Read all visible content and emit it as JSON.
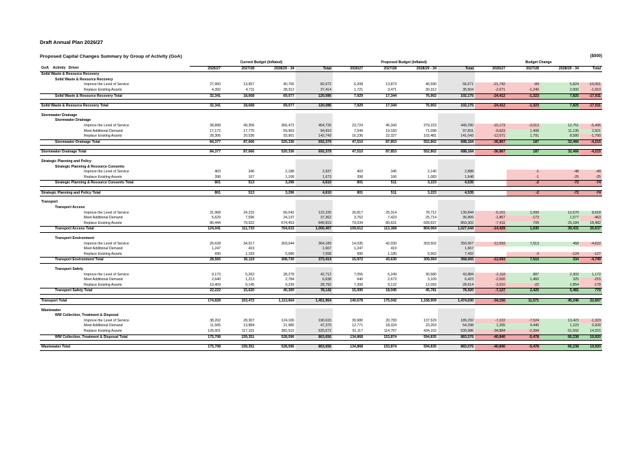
{
  "header": {
    "title": "Draft Annual Plan 2026/27",
    "subtitle": "Proposed Capital Changes Summary by Group of Activity (GoA)",
    "units": "($000)"
  },
  "groups": {
    "current": "Current Budget (Inflated)",
    "proposed": "Proposed Budget (Inflated)",
    "change": "Budget Change"
  },
  "columns": {
    "goa": "GoA",
    "activity": "Activity",
    "driver": "Driver",
    "y1": "2026/27",
    "y2": "2027/28",
    "y3": "2028/29 - 34",
    "total": "Total"
  },
  "rows": [
    {
      "type": "goa",
      "label": "Solid Waste & Resource Recovery"
    },
    {
      "type": "act",
      "label": "Solid Waste & Resource Recovery"
    },
    {
      "type": "drv",
      "label": "Improve the Level of Service",
      "v": [
        "27,950",
        "13,957",
        "40,765",
        "82,672",
        "6,208",
        "13,873",
        "46,590",
        "66,671",
        "-21,742",
        "-84",
        "5,824",
        "-16,001"
      ]
    },
    {
      "type": "drv",
      "label": "Replace Existing Assets",
      "v": [
        "4,392",
        "4,711",
        "28,312",
        "37,414",
        "1,721",
        "3,471",
        "30,312",
        "35,504",
        "-2,671",
        "-1,240",
        "2,000",
        "-1,910"
      ]
    },
    {
      "type": "tot",
      "label": "Solid Waste & Resource Recovery Total",
      "v": [
        "32,341",
        "18,668",
        "69,077",
        "120,086",
        "7,929",
        "17,344",
        "76,902",
        "102,175",
        "-24,412",
        "-1,323",
        "7,825",
        "-17,911"
      ]
    },
    {
      "type": "sp"
    },
    {
      "type": "gtot",
      "label": "Solid Waste & Resource Recovery Total",
      "v": [
        "32,341",
        "18,668",
        "69,077",
        "120,086",
        "7,929",
        "17,344",
        "76,902",
        "102,175",
        "-24,412",
        "-1,323",
        "7,825",
        "-17,911"
      ]
    },
    {
      "type": "sp"
    },
    {
      "type": "goa",
      "label": "Stormwater Drainage"
    },
    {
      "type": "act",
      "label": "Stormwater Drainage"
    },
    {
      "type": "drv",
      "label": "Improve the Level of Service",
      "v": [
        "38,898",
        "49,356",
        "366,472",
        "454,726",
        "23,724",
        "46,343",
        "379,223",
        "449,290",
        "-15,173",
        "-3,013",
        "12,751",
        "-5,436"
      ]
    },
    {
      "type": "drv",
      "label": "Meet Additional Demand",
      "v": [
        "17,172",
        "17,775",
        "59,963",
        "94,910",
        "7,549",
        "19,183",
        "71,098",
        "97,831",
        "-9,623",
        "1,408",
        "11,135",
        "2,921"
      ]
    },
    {
      "type": "drv",
      "label": "Replace Existing Assets",
      "v": [
        "28,306",
        "20,536",
        "93,901",
        "142,743",
        "16,236",
        "22,327",
        "102,481",
        "141,043",
        "-12,071",
        "1,791",
        "8,580",
        "-1,700"
      ]
    },
    {
      "type": "tot",
      "label": "Stormwater Drainage Total",
      "v": [
        "84,377",
        "87,666",
        "520,336",
        "692,379",
        "47,510",
        "87,853",
        "552,802",
        "688,164",
        "-36,867",
        "187",
        "32,466",
        "-4,215"
      ]
    },
    {
      "type": "sp"
    },
    {
      "type": "gtot",
      "label": "Stormwater Drainage Total",
      "v": [
        "84,377",
        "87,666",
        "520,336",
        "692,379",
        "47,510",
        "87,853",
        "552,802",
        "688,164",
        "-36,867",
        "187",
        "32,466",
        "-4,215"
      ]
    },
    {
      "type": "sp"
    },
    {
      "type": "goa",
      "label": "Strategic Planning and Policy"
    },
    {
      "type": "act",
      "label": "Strategic Planning & Resource Consents"
    },
    {
      "type": "drv",
      "label": "Improve the Level of Service",
      "v": [
        "403",
        "346",
        "2,188",
        "2,937",
        "403",
        "345",
        "2,140",
        "2,888",
        "",
        "-1",
        "-48",
        "-49"
      ]
    },
    {
      "type": "drv",
      "label": "Replace Existing Assets",
      "v": [
        "398",
        "167",
        "1,108",
        "1,673",
        "398",
        "166",
        "1,083",
        "1,648",
        "",
        "-1",
        "-25",
        "-25"
      ]
    },
    {
      "type": "tot",
      "label": "Strategic Planning & Resource Consents Total",
      "v": [
        "801",
        "513",
        "3,296",
        "4,610",
        "801",
        "511",
        "3,223",
        "4,535",
        "",
        "-2",
        "-72",
        "-74"
      ]
    },
    {
      "type": "sp"
    },
    {
      "type": "gtot",
      "label": "Strategic Planning and Policy Total",
      "v": [
        "801",
        "513",
        "3,296",
        "4,610",
        "801",
        "511",
        "3,223",
        "4,535",
        "",
        "-2",
        "-72",
        "-74"
      ]
    },
    {
      "type": "sp"
    },
    {
      "type": "goa",
      "label": "Transport"
    },
    {
      "type": "act",
      "label": "Transport Access"
    },
    {
      "type": "drv",
      "label": "Improve the Level of Service",
      "v": [
        "31,968",
        "24,215",
        "66,042",
        "122,226",
        "26,817",
        "25,314",
        "78,712",
        "130,844",
        "-5,151",
        "1,099",
        "12,670",
        "8,618"
      ]
    },
    {
      "type": "drv",
      "label": "Meet Additional Demand",
      "v": [
        "5,629",
        "7,596",
        "24,137",
        "37,362",
        "3,762",
        "7,423",
        "25,714",
        "36,899",
        "-1,867",
        "-173",
        "1,577",
        "-463"
      ]
    },
    {
      "type": "drv",
      "label": "Replace Existing Assets",
      "v": [
        "86,444",
        "79,922",
        "674,453",
        "840,819",
        "79,034",
        "80,631",
        "699,637",
        "859,302",
        "-7,411",
        "709",
        "25,184",
        "18,482"
      ]
    },
    {
      "type": "tot",
      "label": "Transport Access Total",
      "v": [
        "124,041",
        "111,733",
        "764,633",
        "1,000,407",
        "109,612",
        "113,368",
        "804,064",
        "1,027,044",
        "-14,429",
        "1,635",
        "39,431",
        "26,637"
      ]
    },
    {
      "type": "sp"
    },
    {
      "type": "act",
      "label": "Transport Environment"
    },
    {
      "type": "drv",
      "label": "Improve the Level of Service",
      "v": [
        "26,628",
        "34,517",
        "303,044",
        "364,189",
        "14,035",
        "42,030",
        "303,502",
        "359,567",
        "-12,593",
        "7,513",
        "458",
        "-4,622"
      ]
    },
    {
      "type": "drv",
      "label": "Meet Additional Demand",
      "v": [
        "1,247",
        "419",
        "",
        "1,667",
        "1,247",
        "419",
        "",
        "1,667",
        "",
        "",
        "",
        ""
      ]
    },
    {
      "type": "drv",
      "label": "Replace Existing Assets",
      "v": [
        "690",
        "1,183",
        "5,686",
        "7,558",
        "690",
        "1,180",
        "5,562",
        "7,432",
        "",
        "-3",
        "-124",
        "-127"
      ]
    },
    {
      "type": "tot",
      "label": "Transport Environment Total",
      "v": [
        "28,565",
        "36,119",
        "308,730",
        "373,414",
        "15,972",
        "43,630",
        "309,064",
        "368,665",
        "-12,593",
        "7,510",
        "334",
        "-4,749"
      ]
    },
    {
      "type": "sp"
    },
    {
      "type": "act",
      "label": "Transport Safety"
    },
    {
      "type": "drv",
      "label": "Improve the Level of Service",
      "v": [
        "9,173",
        "5,262",
        "28,278",
        "42,712",
        "7,055",
        "6,249",
        "30,580",
        "43,884",
        "-2,118",
        "987",
        "2,302",
        "1,172"
      ]
    },
    {
      "type": "drv",
      "label": "Meet Additional Demand",
      "v": [
        "2,640",
        "1,213",
        "2,784",
        "6,638",
        "640",
        "2,673",
        "3,109",
        "6,423",
        "-2,000",
        "1,460",
        "325",
        "-215"
      ]
    },
    {
      "type": "drv",
      "label": "Replace Existing Assets",
      "v": [
        "10,409",
        "9,145",
        "9,239",
        "28,792",
        "7,399",
        "9,122",
        "12,093",
        "28,614",
        "-3,010",
        "-22",
        "2,854",
        "-178"
      ]
    },
    {
      "type": "tot",
      "label": "Transport Safety Total",
      "v": [
        "22,222",
        "15,620",
        "40,300",
        "78,142",
        "15,095",
        "18,045",
        "45,781",
        "78,920",
        "-7,127",
        "2,425",
        "5,481",
        "779"
      ]
    },
    {
      "type": "sp"
    },
    {
      "type": "gtot",
      "label": "Transport Total",
      "v": [
        "174,828",
        "163,472",
        "1,113,664",
        "1,451,964",
        "140,678",
        "175,042",
        "1,158,909",
        "1,474,630",
        "-34,150",
        "11,571",
        "45,246",
        "22,667"
      ]
    },
    {
      "type": "sp"
    },
    {
      "type": "goa",
      "label": "Wastewater"
    },
    {
      "type": "act",
      "label": "WW Collection, Treatment & Disposal"
    },
    {
      "type": "drv",
      "label": "Improve the Level of Service",
      "v": [
        "38,202",
        "28,307",
        "124,106",
        "190,615",
        "30,980",
        "20,783",
        "137,529",
        "189,292",
        "-7,222",
        "-7,524",
        "13,423",
        "-1,323"
      ]
    },
    {
      "type": "drv",
      "label": "Meet Additional Demand",
      "v": [
        "11,505",
        "13,884",
        "21,980",
        "47,370",
        "12,771",
        "18,324",
        "23,203",
        "54,298",
        "1,265",
        "4,440",
        "1,223",
        "6,928"
      ]
    },
    {
      "type": "drv",
      "label": "Replace Existing Assets",
      "v": [
        "126,001",
        "117,161",
        "382,510",
        "625,672",
        "91,117",
        "114,767",
        "434,102",
        "639,986",
        "-34,884",
        "-2,394",
        "51,592",
        "14,315"
      ]
    },
    {
      "type": "tot",
      "label": "WW Collection, Treatment & Disposal Total",
      "v": [
        "175,708",
        "159,351",
        "528,596",
        "863,656",
        "134,868",
        "153,874",
        "594,835",
        "883,576",
        "-40,840",
        "-5,478",
        "66,238",
        "19,920"
      ]
    },
    {
      "type": "sp"
    },
    {
      "type": "gtot",
      "label": "Wastewater Total",
      "v": [
        "175,708",
        "159,351",
        "528,596",
        "863,656",
        "134,868",
        "153,874",
        "594,835",
        "883,576",
        "-40,840",
        "-5,478",
        "66,238",
        "19,920"
      ]
    }
  ]
}
